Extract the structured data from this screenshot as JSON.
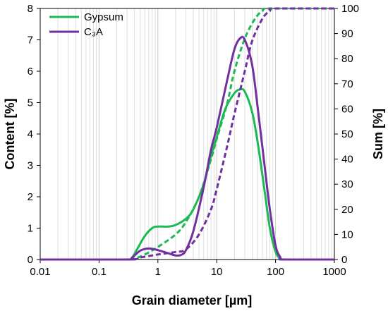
{
  "chart_data": {
    "type": "line",
    "xlabel": "Grain diameter [µm]",
    "ylabel": "Content [%]",
    "y2label": "Sum [%]",
    "xscale": "log",
    "xlim": [
      0.01,
      1000
    ],
    "ylim": [
      0,
      8
    ],
    "y2lim": [
      0,
      100
    ],
    "x_ticks": [
      0.01,
      0.1,
      1,
      10,
      100,
      1000
    ],
    "x_tick_labels": [
      "0.01",
      "0.1",
      "1",
      "10",
      "100",
      "1000"
    ],
    "y_ticks": [
      0,
      1,
      2,
      3,
      4,
      5,
      6,
      7,
      8
    ],
    "y_tick_labels": [
      "0",
      "1",
      "2",
      "3",
      "4",
      "5",
      "6",
      "7",
      "8"
    ],
    "y2_ticks": [
      0,
      10,
      20,
      30,
      40,
      50,
      60,
      70,
      80,
      90,
      100
    ],
    "y2_tick_labels": [
      "0",
      "10",
      "20",
      "30",
      "40",
      "50",
      "60",
      "70",
      "80",
      "90",
      "100"
    ],
    "grid": "vertical log minor lines",
    "legend_position": "top-left",
    "colors": {
      "gypsum": "#1db954",
      "c3a": "#7030a0"
    },
    "series": [
      {
        "name": "Gypsum",
        "kind": "content",
        "axis": "left",
        "style": "solid",
        "color": "#1db954",
        "points": [
          [
            0.01,
            0
          ],
          [
            0.3,
            0
          ],
          [
            0.36,
            0.05
          ],
          [
            0.45,
            0.35
          ],
          [
            0.6,
            0.75
          ],
          [
            0.8,
            1.0
          ],
          [
            1.0,
            1.05
          ],
          [
            1.5,
            1.05
          ],
          [
            2.0,
            1.1
          ],
          [
            3.0,
            1.3
          ],
          [
            4.0,
            1.6
          ],
          [
            6.0,
            2.4
          ],
          [
            8.0,
            3.3
          ],
          [
            10,
            3.9
          ],
          [
            14,
            4.8
          ],
          [
            20,
            5.3
          ],
          [
            25,
            5.42
          ],
          [
            30,
            5.35
          ],
          [
            40,
            4.7
          ],
          [
            50,
            3.7
          ],
          [
            65,
            2.2
          ],
          [
            80,
            1.0
          ],
          [
            100,
            0.25
          ],
          [
            120,
            0.03
          ],
          [
            140,
            0
          ],
          [
            1000,
            0
          ]
        ]
      },
      {
        "name": "",
        "kind": "sum",
        "axis": "right",
        "style": "dashed",
        "color": "#1db954",
        "points": [
          [
            0.01,
            0
          ],
          [
            0.3,
            0
          ],
          [
            0.4,
            0.3
          ],
          [
            0.6,
            2
          ],
          [
            1.0,
            5
          ],
          [
            2.0,
            10
          ],
          [
            3.0,
            15
          ],
          [
            5.0,
            25
          ],
          [
            8.0,
            40
          ],
          [
            10,
            48
          ],
          [
            15,
            62
          ],
          [
            20,
            75
          ],
          [
            30,
            88
          ],
          [
            45,
            96
          ],
          [
            60,
            99
          ],
          [
            80,
            100
          ],
          [
            1000,
            100
          ]
        ]
      },
      {
        "name": "C₃A",
        "kind": "content",
        "axis": "left",
        "style": "solid",
        "color": "#7030a0",
        "points": [
          [
            0.01,
            0
          ],
          [
            0.3,
            0
          ],
          [
            0.36,
            0.05
          ],
          [
            0.5,
            0.28
          ],
          [
            0.7,
            0.35
          ],
          [
            1.0,
            0.3
          ],
          [
            1.5,
            0.2
          ],
          [
            2.0,
            0.13
          ],
          [
            2.5,
            0.15
          ],
          [
            3.0,
            0.3
          ],
          [
            4.0,
            0.9
          ],
          [
            6.0,
            2.3
          ],
          [
            8.0,
            3.5
          ],
          [
            10,
            4.2
          ],
          [
            15,
            5.7
          ],
          [
            20,
            6.7
          ],
          [
            25,
            7.05
          ],
          [
            30,
            7.0
          ],
          [
            40,
            6.2
          ],
          [
            50,
            4.8
          ],
          [
            65,
            3.0
          ],
          [
            80,
            1.6
          ],
          [
            100,
            0.45
          ],
          [
            120,
            0.08
          ],
          [
            140,
            0
          ],
          [
            1000,
            0
          ]
        ]
      },
      {
        "name": "",
        "kind": "sum",
        "axis": "right",
        "style": "dashed",
        "color": "#7030a0",
        "points": [
          [
            0.01,
            0
          ],
          [
            0.3,
            0
          ],
          [
            0.5,
            0.8
          ],
          [
            1.0,
            2
          ],
          [
            2.0,
            3
          ],
          [
            3.0,
            4
          ],
          [
            5.0,
            10
          ],
          [
            8.0,
            20
          ],
          [
            10,
            28
          ],
          [
            15,
            45
          ],
          [
            20,
            58
          ],
          [
            30,
            75
          ],
          [
            40,
            87
          ],
          [
            60,
            96
          ],
          [
            80,
            99
          ],
          [
            100,
            100
          ],
          [
            1000,
            100
          ]
        ]
      }
    ]
  }
}
